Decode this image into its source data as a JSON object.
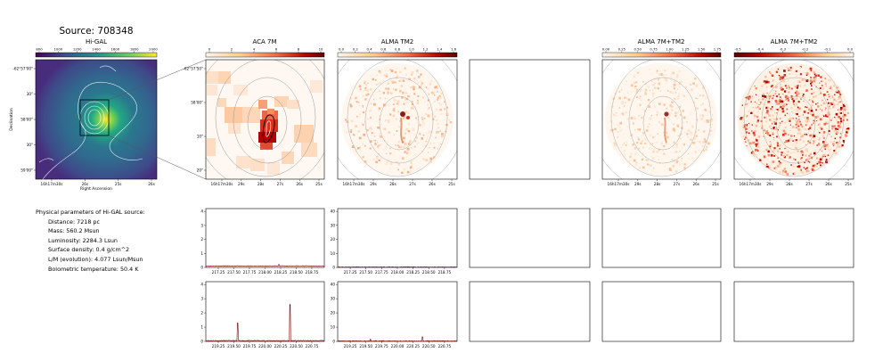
{
  "source_title": "Source: 708348",
  "panels": [
    {
      "title": "Hi-GAL",
      "colorbar_ticks": [
        "800",
        "1000",
        "1200",
        "1400",
        "1600",
        "1800",
        "2000"
      ],
      "colormap": "viridis",
      "dec_ticks": [
        "-62°57'00\"",
        "30\"",
        "58'00\"",
        "30\"",
        "59'00\""
      ],
      "ra_ticks": [
        "16h17m30s",
        "26s",
        "25s",
        "26s"
      ],
      "xlabel": "Right Ascension",
      "ylabel": "Declination"
    },
    {
      "title": "ACA 7M",
      "colorbar_ticks": [
        "0",
        "2",
        "4",
        "6",
        "8",
        "10"
      ],
      "colormap": "red-white",
      "dec_ticks": [
        "-62°57'50\"",
        "58'00\"",
        "10\"",
        "20\""
      ],
      "ra_ticks": [
        "16h17m30s",
        "29s",
        "28s",
        "27s",
        "26s",
        "25s"
      ]
    },
    {
      "title": "ALMA TM2",
      "colorbar_ticks": [
        "0.0",
        "0.2",
        "0.4",
        "0.6",
        "0.8",
        "1.0",
        "1.2",
        "1.4",
        "1.6"
      ],
      "colormap": "red-white",
      "ra_ticks": [
        "16h17m30s",
        "29s",
        "28s",
        "27s",
        "26s",
        "25s"
      ]
    },
    {
      "title": ""
    },
    {
      "title": "ALMA 7M+TM2",
      "colorbar_ticks": [
        "0.00",
        "0.25",
        "0.50",
        "0.75",
        "1.00",
        "1.25",
        "1.50",
        "1.75"
      ],
      "colormap": "red-white",
      "ra_ticks": [
        "16h17m30s",
        "29s",
        "28s",
        "27s",
        "26s",
        "25s"
      ]
    },
    {
      "title": "ALMA 7M+TM2",
      "colorbar_ticks": [
        "-0.5",
        "-0.4",
        "-0.3",
        "-0.2",
        "-0.1",
        "0.0"
      ],
      "colormap": "red-white-inverted",
      "ra_ticks": [
        "16h17m30s",
        "29s",
        "28s",
        "27s",
        "26s",
        "25s"
      ]
    }
  ],
  "parameters": {
    "heading": "Physical parameters of Hi-GAL source:",
    "lines": [
      "Distance: 7218 pc",
      "Mass: 560.2 Msun",
      "Luminosity: 2284.3 Lsun",
      "Surface density: 0.4 g/cm^2",
      "L/M (evolution): 4.077 Lsun/Msun",
      "Bolometric temperature: 50.4 K"
    ]
  },
  "chart_data": [
    {
      "type": "line",
      "panel": "spectrum-row1-aca",
      "y_ticks": [
        "0",
        "1",
        "2",
        "3",
        "4"
      ],
      "ylim": [
        0,
        4.2
      ],
      "x_ticks": [
        "217.25",
        "217.50",
        "217.75",
        "218.00",
        "218.25",
        "218.50",
        "218.75"
      ],
      "xlim": [
        217.05,
        218.95
      ],
      "baseline": 0.1,
      "peaks": [
        [
          218.22,
          0.25
        ]
      ],
      "color": "#7f0000"
    },
    {
      "type": "line",
      "panel": "spectrum-row1-alma",
      "y_ticks": [
        "0",
        "10",
        "20",
        "30",
        "40"
      ],
      "ylim": [
        0,
        42
      ],
      "x_ticks": [
        "217.25",
        "217.50",
        "217.75",
        "218.00",
        "218.25",
        "218.50",
        "218.75"
      ],
      "xlim": [
        217.05,
        218.95
      ],
      "baseline": 0.3,
      "peaks": [],
      "color": "#7f0000"
    },
    {
      "type": "line",
      "panel": "spectrum-row2-aca",
      "y_ticks": [
        "0",
        "1",
        "2",
        "3",
        "4"
      ],
      "ylim": [
        0,
        4.2
      ],
      "x_ticks": [
        "219.25",
        "219.50",
        "219.75",
        "220.00",
        "220.25",
        "220.50",
        "220.75"
      ],
      "xlim": [
        219.05,
        220.95
      ],
      "baseline": 0.05,
      "peaks": [
        [
          219.56,
          1.3
        ],
        [
          220.4,
          2.6
        ]
      ],
      "color": "#7f0000"
    },
    {
      "type": "line",
      "panel": "spectrum-row2-alma",
      "y_ticks": [
        "0",
        "10",
        "20",
        "30",
        "40"
      ],
      "ylim": [
        0,
        42
      ],
      "x_ticks": [
        "219.25",
        "219.50",
        "219.75",
        "220.00",
        "220.25",
        "220.50",
        "220.75"
      ],
      "xlim": [
        219.05,
        220.95
      ],
      "baseline": 0.3,
      "peaks": [
        [
          219.57,
          1.8
        ],
        [
          220.4,
          3.2
        ]
      ],
      "color": "#7f0000"
    }
  ]
}
